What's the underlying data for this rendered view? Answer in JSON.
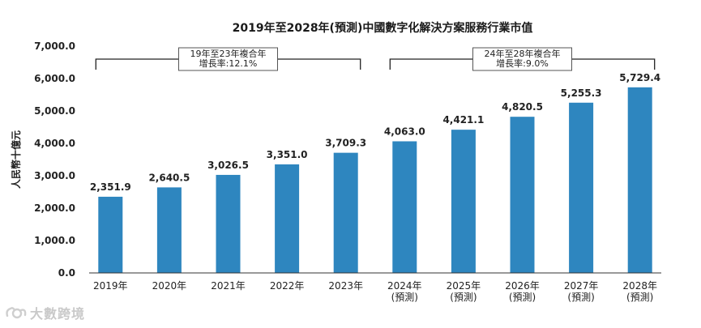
{
  "chart_data": {
    "type": "bar",
    "title": "2019年至2028年(預測)中國數字化解決方案服務行業市值",
    "ylabel": "人民幣十億元",
    "xlabel": "",
    "ylim": [
      0,
      7000
    ],
    "yticks": [
      "0.0",
      "1,000.0",
      "2,000.0",
      "3,000.0",
      "4,000.0",
      "5,000.0",
      "6,000.0",
      "7,000.0"
    ],
    "categories": [
      [
        "2019年"
      ],
      [
        "2020年"
      ],
      [
        "2021年"
      ],
      [
        "2022年"
      ],
      [
        "2023年"
      ],
      [
        "2024年",
        "(預測)"
      ],
      [
        "2025年",
        "(預測)"
      ],
      [
        "2026年",
        "(預測)"
      ],
      [
        "2027年",
        "(預測)"
      ],
      [
        "2028年",
        "(預測)"
      ]
    ],
    "values": [
      2351.9,
      2640.5,
      3026.5,
      3351.0,
      3709.3,
      4063.0,
      4421.1,
      4820.5,
      5255.3,
      5729.4
    ],
    "value_labels": [
      "2,351.9",
      "2,640.5",
      "3,026.5",
      "3,351.0",
      "3,709.3",
      "4,063.0",
      "4,421.1",
      "4,820.5",
      "5,255.3",
      "5,729.4"
    ],
    "bar_color": "#2e86bf",
    "grid": false,
    "annotations": [
      {
        "from": 0,
        "to": 4,
        "lines": [
          "19年至23年複合年",
          "增長率:12.1%"
        ]
      },
      {
        "from": 5,
        "to": 9,
        "lines": [
          "24年至28年複合年",
          "增長率:9.0%"
        ]
      }
    ]
  },
  "watermark": {
    "text": "大數跨境",
    "icon": "brand-logo-icon"
  }
}
